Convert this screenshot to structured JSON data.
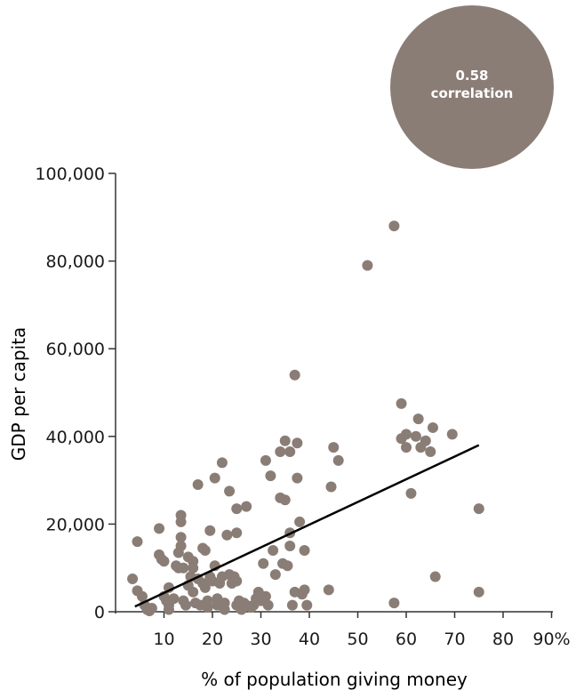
{
  "chart_data": {
    "type": "scatter",
    "xlabel": "% of population giving money",
    "ylabel": "GDP per capita",
    "xlim": [
      0,
      90
    ],
    "ylim": [
      0,
      100000
    ],
    "x_ticks": [
      10,
      20,
      30,
      40,
      50,
      60,
      70,
      80,
      90
    ],
    "x_tick_labels": [
      "10",
      "20",
      "30",
      "40",
      "50",
      "60",
      "70",
      "80",
      "90%"
    ],
    "y_ticks": [
      0,
      20000,
      40000,
      60000,
      80000,
      100000
    ],
    "y_tick_labels": [
      "0",
      "20,000",
      "40,000",
      "60,000",
      "80,000",
      "100,000"
    ],
    "grid": false,
    "legend": "none",
    "point_color": "#8a7d76",
    "line_color": "#000000",
    "badge": {
      "value": "0.58",
      "label": "correlation",
      "color": "#8a7d76"
    },
    "trendline": {
      "x": [
        4,
        75
      ],
      "y": [
        1200,
        38000
      ]
    },
    "points": [
      [
        3.5,
        7500
      ],
      [
        4.5,
        16000
      ],
      [
        4.5,
        4800
      ],
      [
        5.5,
        3500
      ],
      [
        6,
        1500
      ],
      [
        6.5,
        500
      ],
      [
        7,
        200
      ],
      [
        7.5,
        800
      ],
      [
        9,
        19000
      ],
      [
        9,
        13000
      ],
      [
        9.5,
        12000
      ],
      [
        10,
        11500
      ],
      [
        10,
        3500
      ],
      [
        10.5,
        2500
      ],
      [
        11,
        5500
      ],
      [
        11,
        1500
      ],
      [
        11,
        500
      ],
      [
        12,
        3000
      ],
      [
        12.5,
        10500
      ],
      [
        13,
        10000
      ],
      [
        13,
        13500
      ],
      [
        13.5,
        22000
      ],
      [
        13.5,
        20500
      ],
      [
        13.5,
        17000
      ],
      [
        13.5,
        15000
      ],
      [
        14,
        10000
      ],
      [
        14,
        2500
      ],
      [
        14.5,
        1500
      ],
      [
        15,
        12500
      ],
      [
        15,
        6000
      ],
      [
        15.5,
        8000
      ],
      [
        16,
        11500
      ],
      [
        16,
        10000
      ],
      [
        16,
        4500
      ],
      [
        16.5,
        2000
      ],
      [
        17,
        29000
      ],
      [
        17,
        7500
      ],
      [
        17.5,
        1500
      ],
      [
        18,
        14500
      ],
      [
        18,
        6500
      ],
      [
        18.5,
        14000
      ],
      [
        18.5,
        5500
      ],
      [
        19,
        2500
      ],
      [
        19,
        1000
      ],
      [
        19.5,
        18500
      ],
      [
        19.5,
        8000
      ],
      [
        20,
        7000
      ],
      [
        20.5,
        30500
      ],
      [
        20.5,
        10500
      ],
      [
        21,
        3000
      ],
      [
        21,
        1500
      ],
      [
        21.5,
        6500
      ],
      [
        22,
        34000
      ],
      [
        22,
        8000
      ],
      [
        22.5,
        2000
      ],
      [
        22.5,
        500
      ],
      [
        23,
        17500
      ],
      [
        23.5,
        27500
      ],
      [
        23.5,
        8500
      ],
      [
        24,
        6500
      ],
      [
        24.5,
        8000
      ],
      [
        25,
        23500
      ],
      [
        25,
        18000
      ],
      [
        25,
        7000
      ],
      [
        25,
        1500
      ],
      [
        25.5,
        2500
      ],
      [
        26,
        500
      ],
      [
        26.5,
        2000
      ],
      [
        27,
        24000
      ],
      [
        27,
        1500
      ],
      [
        28,
        1000
      ],
      [
        28.5,
        1500
      ],
      [
        29,
        3000
      ],
      [
        29.5,
        4500
      ],
      [
        30,
        2500
      ],
      [
        30.5,
        11000
      ],
      [
        31,
        34500
      ],
      [
        31,
        3500
      ],
      [
        31.5,
        1500
      ],
      [
        32,
        31000
      ],
      [
        32.5,
        14000
      ],
      [
        33,
        8500
      ],
      [
        34,
        36500
      ],
      [
        34,
        26000
      ],
      [
        34.5,
        11000
      ],
      [
        35,
        39000
      ],
      [
        35,
        25500
      ],
      [
        35.5,
        10500
      ],
      [
        36,
        36500
      ],
      [
        36,
        18000
      ],
      [
        36,
        15000
      ],
      [
        36.5,
        1500
      ],
      [
        37,
        54000
      ],
      [
        37,
        4500
      ],
      [
        37.5,
        38500
      ],
      [
        37.5,
        30500
      ],
      [
        38,
        20500
      ],
      [
        38.5,
        4000
      ],
      [
        39,
        5000
      ],
      [
        39,
        14000
      ],
      [
        39.5,
        1500
      ],
      [
        44,
        5000
      ],
      [
        44.5,
        28500
      ],
      [
        45,
        37500
      ],
      [
        46,
        34500
      ],
      [
        52,
        79000
      ],
      [
        57.5,
        88000
      ],
      [
        57.5,
        2000
      ],
      [
        59,
        47500
      ],
      [
        59,
        39500
      ],
      [
        60,
        40500
      ],
      [
        60,
        37500
      ],
      [
        61,
        27000
      ],
      [
        62,
        40000
      ],
      [
        62.5,
        44000
      ],
      [
        63,
        37500
      ],
      [
        64,
        39000
      ],
      [
        65,
        36500
      ],
      [
        65.5,
        42000
      ],
      [
        66,
        8000
      ],
      [
        69.5,
        40500
      ],
      [
        75,
        23500
      ],
      [
        75,
        4500
      ]
    ]
  }
}
